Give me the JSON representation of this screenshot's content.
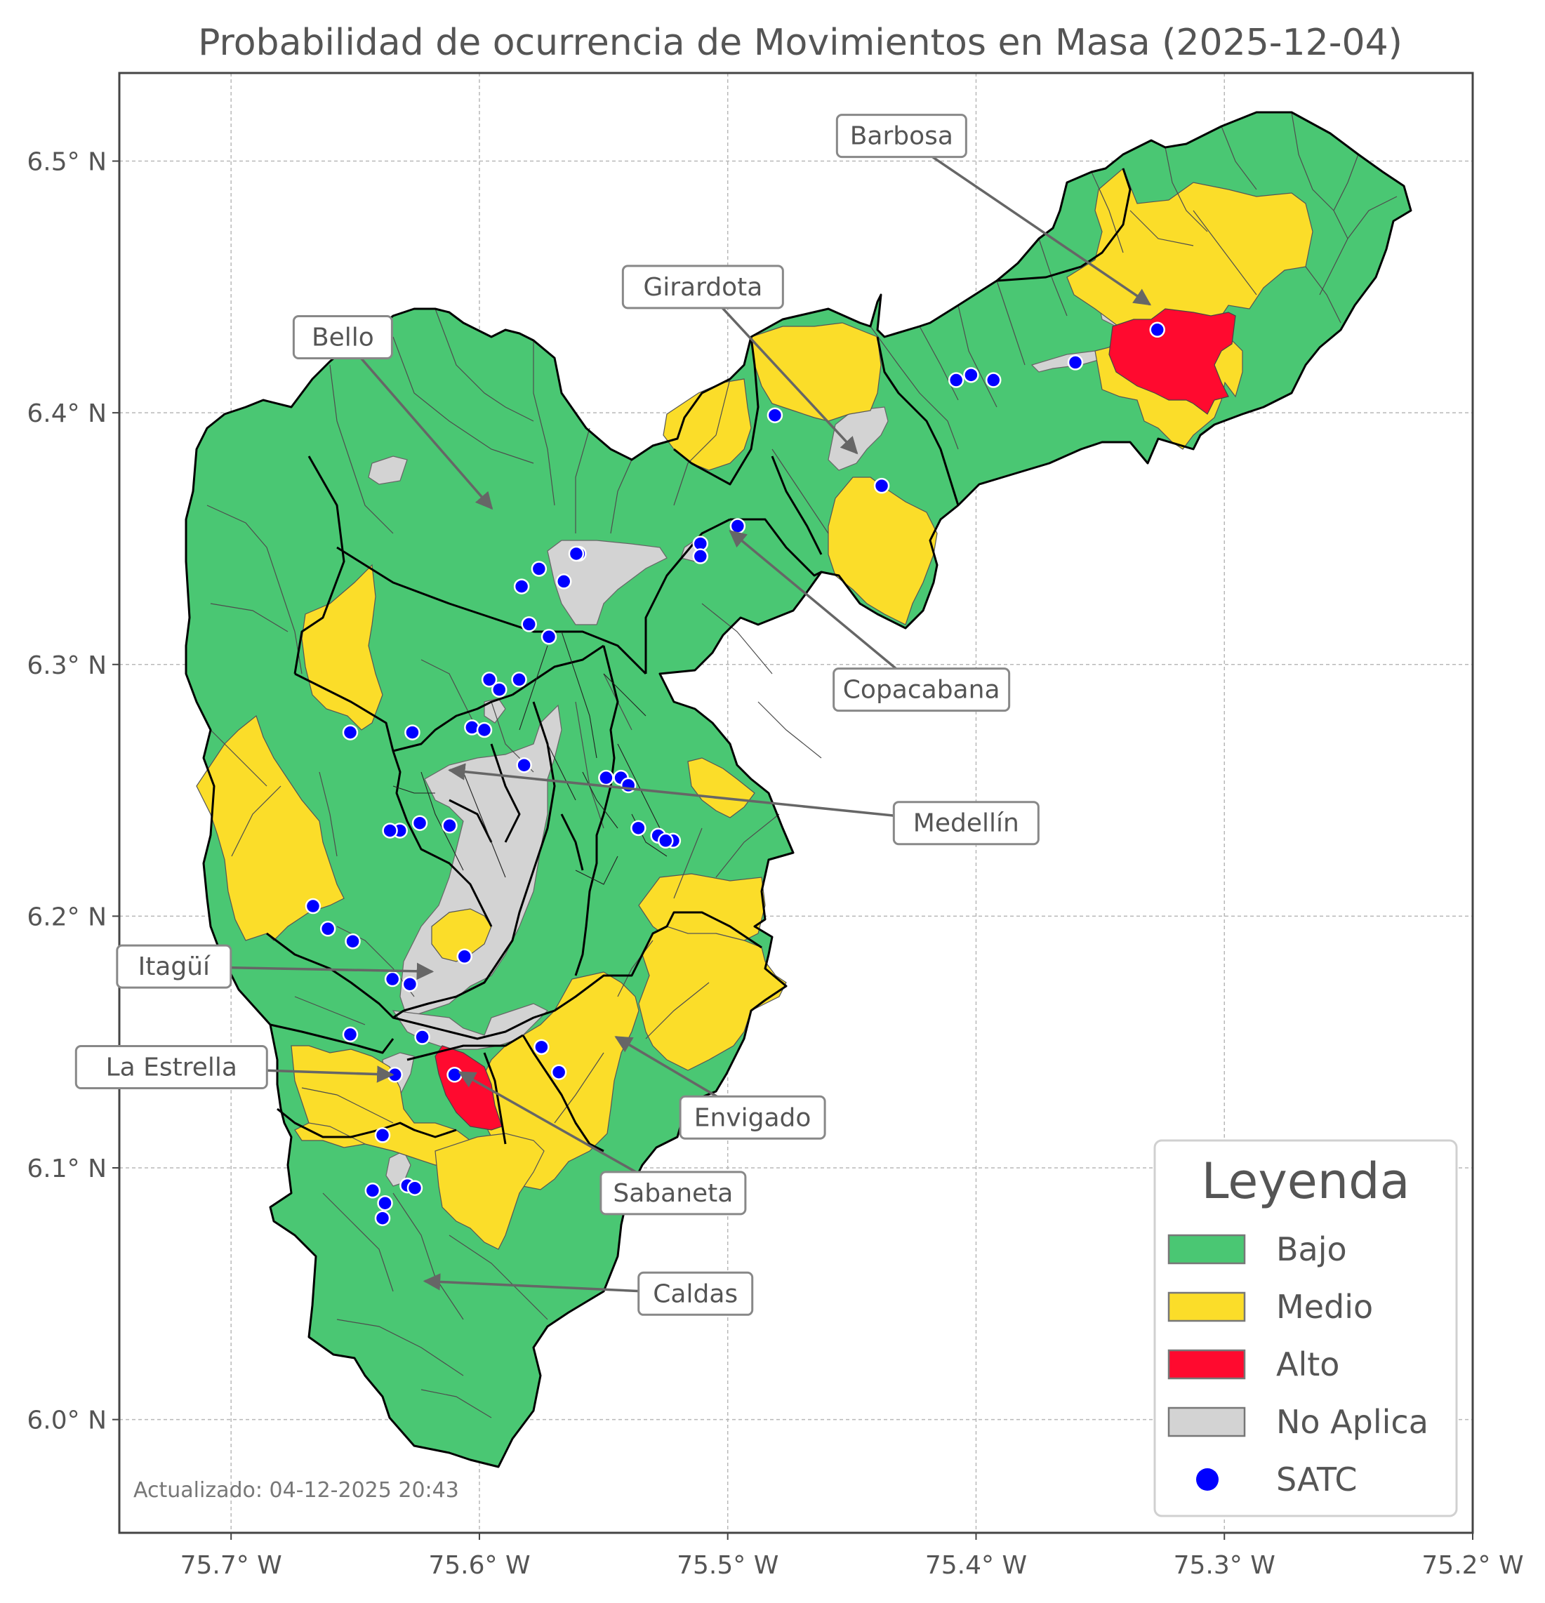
{
  "title": "Probabilidad de ocurrencia de Movimientos en Masa (2025-12-04)",
  "footer": "Actualizado: 04-12-2025 20:43",
  "axes": {
    "x_ticks": [
      "75.7° W",
      "75.6° W",
      "75.5° W",
      "75.4° W",
      "75.3° W",
      "75.2° W"
    ],
    "y_ticks": [
      "6.5° N",
      "6.4° N",
      "6.3° N",
      "6.2° N",
      "6.1° N",
      "6.0° N"
    ],
    "lon_range": [
      -75.745,
      -75.2
    ],
    "lat_range": [
      5.955,
      6.535
    ]
  },
  "legend": {
    "title": "Leyenda",
    "items": [
      {
        "label": "Bajo",
        "color": "#4ac773",
        "kind": "box"
      },
      {
        "label": "Medio",
        "color": "#fbdd29",
        "kind": "box"
      },
      {
        "label": "Alto",
        "color": "#ff0a2f",
        "kind": "box"
      },
      {
        "label": "No Aplica",
        "color": "#d3d3d3",
        "kind": "box"
      },
      {
        "label": "SATC",
        "color": "#0000ff",
        "kind": "dot"
      }
    ]
  },
  "municipalities": [
    {
      "name": "Barbosa",
      "label_lon": -75.43,
      "label_lat": 6.51,
      "target_lon": -75.33,
      "target_lat": 6.443
    },
    {
      "name": "Girardota",
      "label_lon": -75.51,
      "label_lat": 6.45,
      "target_lon": -75.448,
      "target_lat": 6.384
    },
    {
      "name": "Bello",
      "label_lon": -75.655,
      "label_lat": 6.43,
      "target_lon": -75.595,
      "target_lat": 6.362
    },
    {
      "name": "Copacabana",
      "label_lon": -75.422,
      "label_lat": 6.29,
      "target_lon": -75.499,
      "target_lat": 6.353
    },
    {
      "name": "Medellín",
      "label_lon": -75.404,
      "label_lat": 6.237,
      "target_lon": -75.612,
      "target_lat": 6.258
    },
    {
      "name": "Itagüí",
      "label_lon": -75.723,
      "label_lat": 6.18,
      "target_lon": -75.619,
      "target_lat": 6.178
    },
    {
      "name": "La Estrella",
      "label_lon": -75.724,
      "label_lat": 6.14,
      "target_lon": -75.635,
      "target_lat": 6.137
    },
    {
      "name": "Envigado",
      "label_lon": -75.49,
      "label_lat": 6.12,
      "target_lon": -75.545,
      "target_lat": 6.152
    },
    {
      "name": "Sabaneta",
      "label_lon": -75.522,
      "label_lat": 6.09,
      "target_lon": -75.608,
      "target_lat": 6.138
    },
    {
      "name": "Caldas",
      "label_lon": -75.513,
      "label_lat": 6.05,
      "target_lon": -75.622,
      "target_lat": 6.055
    }
  ],
  "satc_stations": [
    [
      -75.327,
      6.433
    ],
    [
      -75.36,
      6.42
    ],
    [
      -75.393,
      6.413
    ],
    [
      -75.402,
      6.415
    ],
    [
      -75.408,
      6.413
    ],
    [
      -75.481,
      6.399
    ],
    [
      -75.438,
      6.371
    ],
    [
      -75.496,
      6.355
    ],
    [
      -75.511,
      6.348
    ],
    [
      -75.511,
      6.343
    ],
    [
      -75.56,
      6.344
    ],
    [
      -75.561,
      6.344
    ],
    [
      -75.576,
      6.338
    ],
    [
      -75.583,
      6.331
    ],
    [
      -75.566,
      6.333
    ],
    [
      -75.58,
      6.316
    ],
    [
      -75.572,
      6.311
    ],
    [
      -75.596,
      6.294
    ],
    [
      -75.592,
      6.29
    ],
    [
      -75.584,
      6.294
    ],
    [
      -75.652,
      6.273
    ],
    [
      -75.627,
      6.273
    ],
    [
      -75.603,
      6.275
    ],
    [
      -75.598,
      6.274
    ],
    [
      -75.582,
      6.26
    ],
    [
      -75.549,
      6.255
    ],
    [
      -75.543,
      6.255
    ],
    [
      -75.54,
      6.252
    ],
    [
      -75.536,
      6.235
    ],
    [
      -75.528,
      6.232
    ],
    [
      -75.522,
      6.23
    ],
    [
      -75.525,
      6.23
    ],
    [
      -75.612,
      6.236
    ],
    [
      -75.624,
      6.237
    ],
    [
      -75.632,
      6.234
    ],
    [
      -75.636,
      6.234
    ],
    [
      -75.667,
      6.204
    ],
    [
      -75.661,
      6.195
    ],
    [
      -75.651,
      6.19
    ],
    [
      -75.606,
      6.184
    ],
    [
      -75.635,
      6.175
    ],
    [
      -75.628,
      6.173
    ],
    [
      -75.652,
      6.153
    ],
    [
      -75.623,
      6.152
    ],
    [
      -75.575,
      6.148
    ],
    [
      -75.568,
      6.138
    ],
    [
      -75.634,
      6.137
    ],
    [
      -75.61,
      6.137
    ],
    [
      -75.639,
      6.113
    ],
    [
      -75.643,
      6.091
    ],
    [
      -75.629,
      6.093
    ],
    [
      -75.626,
      6.092
    ],
    [
      -75.638,
      6.086
    ],
    [
      -75.639,
      6.08
    ]
  ]
}
